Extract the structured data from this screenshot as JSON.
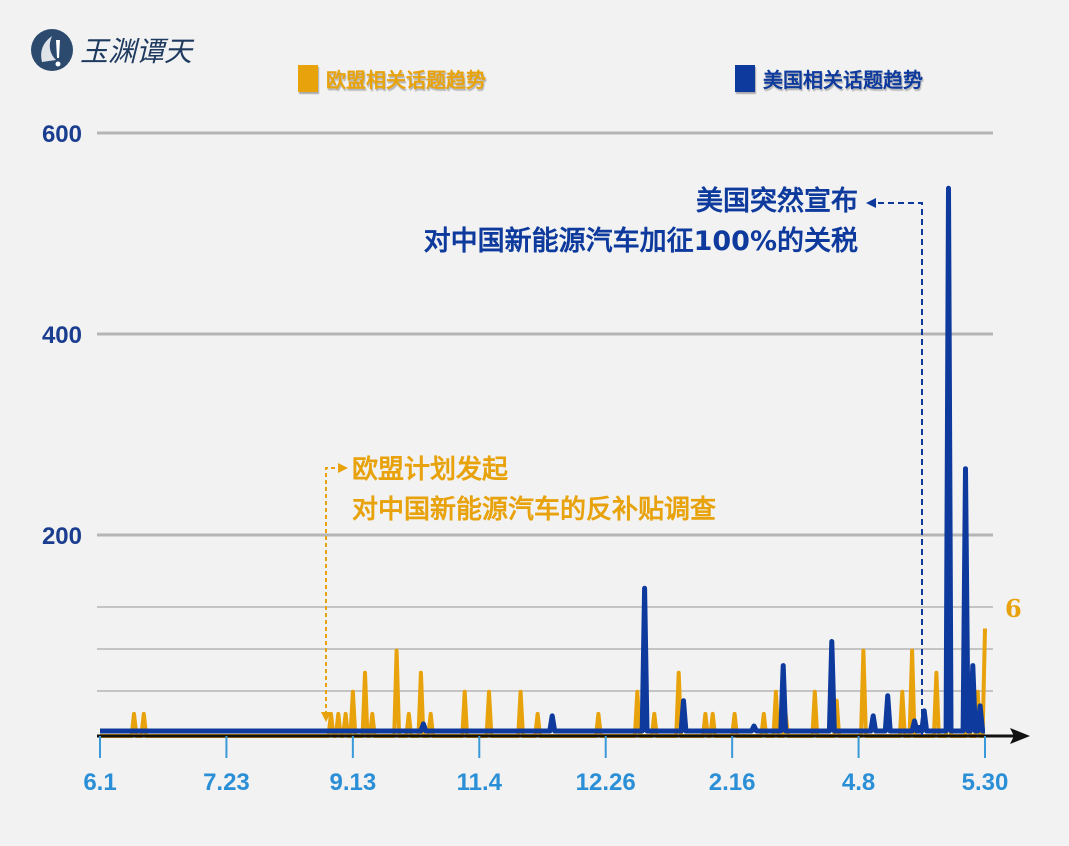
{
  "logo": {
    "text": "玉渊谭天"
  },
  "colors": {
    "eu": "#e8a20c",
    "us": "#0d3a9c",
    "axis_tick": "#3a9ad9",
    "grid": "#bbbbbb"
  },
  "chart_data": {
    "type": "line",
    "legend": [
      {
        "name": "欧盟相关话题趋势",
        "color": "#e8a20c"
      },
      {
        "name": "美国相关话题趋势",
        "color": "#0d3a9c"
      }
    ],
    "legend_placement": "top",
    "x_tick_labels": [
      "6.1",
      "7.23",
      "9.13",
      "11.4",
      "12.26",
      "2.16",
      "4.8",
      "5.30"
    ],
    "y_tick_labels": [
      "200",
      "400",
      "600"
    ],
    "ylim": [
      0,
      600
    ],
    "grid": true,
    "right_label": "6",
    "baseline_us": 5,
    "series": [
      {
        "name": "欧盟相关话题趋势",
        "color": "#e8a20c",
        "peaks": [
          [
            "6.15",
            22
          ],
          [
            "6.19",
            22
          ],
          [
            "9.4",
            22
          ],
          [
            "9.7",
            22
          ],
          [
            "9.10",
            22
          ],
          [
            "9.13",
            44
          ],
          [
            "9.18",
            63
          ],
          [
            "9.21",
            22
          ],
          [
            "10.1",
            85
          ],
          [
            "10.6",
            22
          ],
          [
            "10.11",
            63
          ],
          [
            "10.15",
            22
          ],
          [
            "10.29",
            44
          ],
          [
            "11.8",
            44
          ],
          [
            "11.21",
            44
          ],
          [
            "11.28",
            22
          ],
          [
            "12.23",
            22
          ],
          [
            "1.8",
            44
          ],
          [
            "1.15",
            22
          ],
          [
            "1.25",
            63
          ],
          [
            "2.5",
            22
          ],
          [
            "2.8",
            22
          ],
          [
            "2.17",
            22
          ],
          [
            "2.29",
            22
          ],
          [
            "3.5",
            44
          ],
          [
            "3.9",
            22
          ],
          [
            "3.21",
            44
          ],
          [
            "3.30",
            35
          ],
          [
            "4.10",
            85
          ],
          [
            "4.26",
            44
          ],
          [
            "4.30",
            85
          ],
          [
            "5.10",
            63
          ],
          [
            "5.15",
            107
          ],
          [
            "5.23",
            63
          ],
          [
            "5.27",
            44
          ],
          [
            "5.30",
            107
          ]
        ]
      },
      {
        "name": "美国相关话题趋势",
        "color": "#0d3a9c",
        "peaks": [
          [
            "10.12",
            12
          ],
          [
            "12.4",
            20
          ],
          [
            "1.11",
            147
          ],
          [
            "1.27",
            35
          ],
          [
            "2.25",
            10
          ],
          [
            "3.8",
            70
          ],
          [
            "3.28",
            94
          ],
          [
            "4.14",
            20
          ],
          [
            "4.20",
            40
          ],
          [
            "5.1",
            15
          ],
          [
            "5.5",
            25
          ],
          [
            "5.15",
            545
          ],
          [
            "5.22",
            266
          ],
          [
            "5.25",
            70
          ],
          [
            "5.28",
            30
          ]
        ]
      }
    ],
    "annotations": [
      {
        "series": "美国相关话题趋势",
        "date": "5.10",
        "lines": [
          "美国突然宣布",
          "对中国新能源汽车加征100%的关税"
        ]
      },
      {
        "series": "欧盟相关话题趋势",
        "date": "9.3",
        "lines": [
          "欧盟计划发起",
          "对中国新能源汽车的反补贴调查"
        ]
      }
    ]
  }
}
